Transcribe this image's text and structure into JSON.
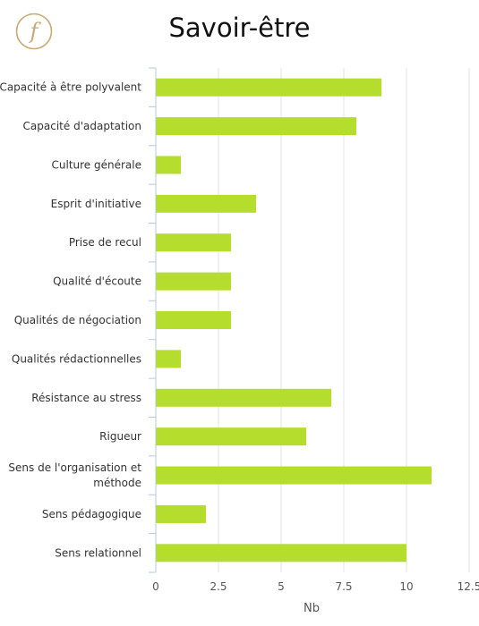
{
  "logo": {
    "glyph": "f",
    "icon": "f-monogram-logo",
    "color": "#c9a96e"
  },
  "chart_data": {
    "type": "bar",
    "orientation": "horizontal",
    "title": "Savoir-être",
    "xlabel": "Nb",
    "ylabel": "",
    "xlim": [
      0,
      12.5
    ],
    "xticks": [
      "0",
      "2.5",
      "5",
      "7.5",
      "10",
      "12.5"
    ],
    "grid": true,
    "legend": "none",
    "bar_color": "#b4dd2e",
    "categories": [
      [
        "Capacité à être polyvalent"
      ],
      [
        "Capacité d'adaptation"
      ],
      [
        "Culture générale"
      ],
      [
        "Esprit d'initiative"
      ],
      [
        "Prise de recul"
      ],
      [
        "Qualité d'écoute"
      ],
      [
        "Qualités de négociation"
      ],
      [
        "Qualités rédactionnelles"
      ],
      [
        "Résistance au stress"
      ],
      [
        "Rigueur"
      ],
      [
        "Sens de l'organisation et",
        "méthode"
      ],
      [
        "Sens pédagogique"
      ],
      [
        "Sens relationnel"
      ]
    ],
    "values": [
      9,
      8,
      1,
      4,
      3,
      3,
      3,
      1,
      7,
      6,
      11,
      2,
      10
    ]
  }
}
